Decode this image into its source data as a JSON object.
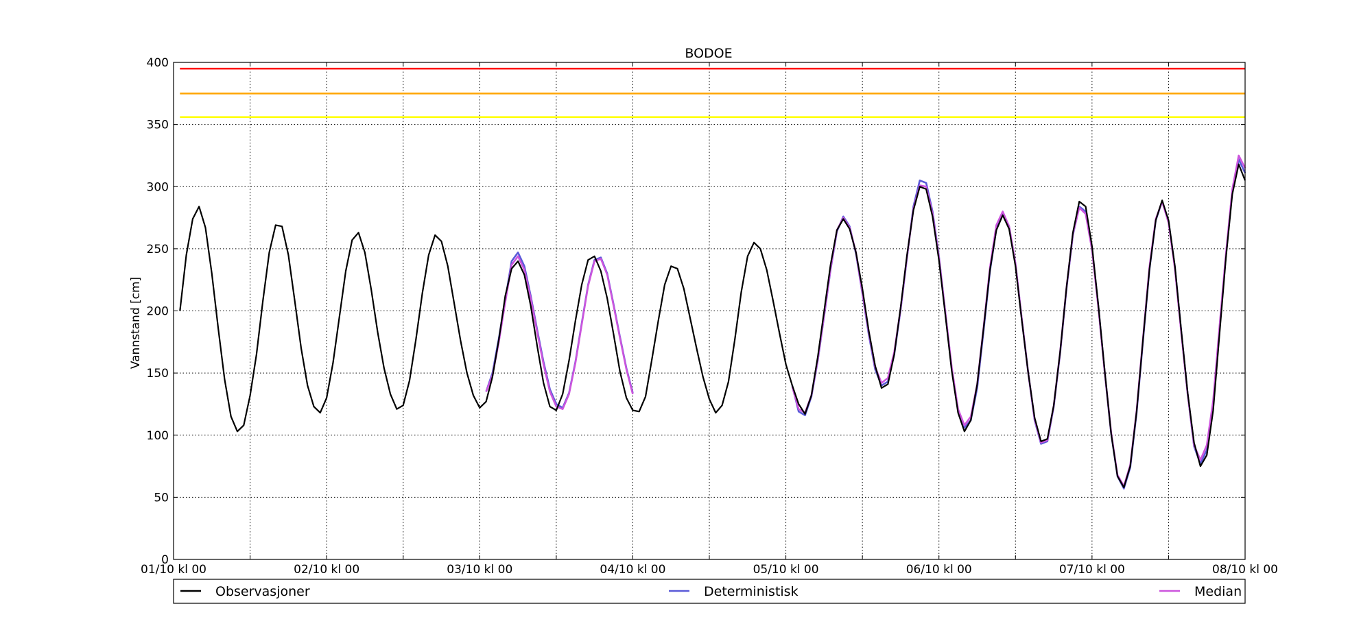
{
  "chart_data": {
    "type": "line",
    "title": "BODOE",
    "xlabel": "",
    "ylabel": "Vannstand [cm]",
    "ylim": [
      0,
      400
    ],
    "xlim_hours": [
      0,
      168
    ],
    "yticks": [
      0,
      50,
      100,
      150,
      200,
      250,
      300,
      350,
      400
    ],
    "xtick_labels": [
      "01/10 kl 00",
      "02/10 kl 00",
      "03/10 kl 00",
      "04/10 kl 00",
      "05/10 kl 00",
      "06/10 kl 00",
      "07/10 kl 00",
      "08/10 kl 00"
    ],
    "grid": true,
    "legend_position": "bottom",
    "thresholds": [
      {
        "value": 395,
        "color": "#ff0000"
      },
      {
        "value": 375,
        "color": "#ffa500"
      },
      {
        "value": 356,
        "color": "#ffff00"
      }
    ],
    "series": [
      {
        "name": "Observasjoner",
        "color": "#000000",
        "x_start_hour": 1,
        "x_step_hours": 1,
        "values": [
          200,
          245,
          274,
          284,
          267,
          230,
          186,
          145,
          115,
          103,
          108,
          132,
          165,
          208,
          247,
          269,
          268,
          245,
          208,
          170,
          140,
          123,
          118,
          130,
          158,
          195,
          232,
          257,
          263,
          247,
          217,
          183,
          154,
          133,
          121,
          124,
          144,
          177,
          214,
          245,
          261,
          256,
          236,
          206,
          176,
          150,
          132,
          122,
          127,
          147,
          177,
          212,
          234,
          240,
          229,
          204,
          172,
          142,
          123,
          120,
          133,
          160,
          192,
          221,
          241,
          244,
          232,
          210,
          181,
          151,
          130,
          120,
          119,
          131,
          161,
          192,
          221,
          236,
          234,
          218,
          194,
          170,
          147,
          129,
          118,
          124,
          143,
          177,
          215,
          244,
          255,
          250,
          233,
          208,
          182,
          157,
          140,
          125,
          117,
          132,
          163,
          200,
          237,
          265,
          274,
          266,
          247,
          218,
          184,
          156,
          138,
          141,
          165,
          203,
          245,
          281,
          300,
          298,
          276,
          241,
          197,
          152,
          118,
          103,
          112,
          141,
          186,
          233,
          265,
          277,
          266,
          236,
          192,
          150,
          114,
          95,
          97,
          124,
          167,
          219,
          263,
          288,
          284,
          252,
          204,
          151,
          101,
          67,
          58,
          75,
          119,
          177,
          233,
          273,
          289,
          273,
          236,
          184,
          134,
          94,
          75,
          84,
          120,
          182,
          243,
          294,
          318,
          305
        ]
      },
      {
        "name": "Deterministisk",
        "color": "#5a5ad8",
        "segments": [
          {
            "x_start_hour": 49,
            "x_step_hours": 1,
            "values": [
              135,
              150,
              178,
              209,
              240,
              247,
              236,
              212,
              185,
              159,
              137,
              125,
              122,
              134,
              159,
              190,
              221,
              241,
              243,
              230,
              205,
              179,
              154,
              134
            ]
          },
          {
            "x_start_hour": 97,
            "x_step_hours": 1,
            "values": [
              140,
              119,
              116,
              131,
              160,
              196,
              233,
              264,
              276,
              268,
              246,
              214,
              181,
              153,
              140,
              143,
              165,
              201,
              243,
              284,
              305,
              303,
              280,
              244,
              199,
              154,
              120,
              106,
              112,
              138,
              184,
              232,
              266,
              279,
              268,
              238,
              193,
              150,
              112,
              93,
              95,
              123,
              166,
              218,
              261,
              284,
              280,
              250,
              203,
              150,
              101,
              67,
              57,
              74,
              118,
              176,
              233,
              273,
              288,
              272,
              235,
              183,
              133,
              91,
              77,
              88,
              125,
              186,
              245,
              297,
              322,
              311
            ]
          }
        ]
      },
      {
        "name": "Median",
        "color": "#cc55dd",
        "segments": [
          {
            "x_start_hour": 49,
            "x_step_hours": 1,
            "values": [
              135,
              148,
              175,
              207,
              237,
              244,
              233,
              210,
              183,
              157,
              135,
              123,
              121,
              133,
              158,
              189,
              220,
              240,
              242,
              229,
              204,
              178,
              153,
              133
            ]
          },
          {
            "x_start_hour": 97,
            "x_step_hours": 1,
            "values": [
              139,
              121,
              118,
              132,
              161,
              197,
              234,
              265,
              275,
              267,
              247,
              215,
              183,
              155,
              142,
              146,
              167,
              202,
              244,
              282,
              301,
              300,
              278,
              243,
              199,
              155,
              121,
              108,
              115,
              141,
              187,
              235,
              269,
              280,
              268,
              238,
              193,
              150,
              113,
              94,
              96,
              124,
              167,
              219,
              262,
              283,
              278,
              249,
              202,
              150,
              102,
              68,
              59,
              76,
              120,
              178,
              235,
              274,
              288,
              271,
              234,
              182,
              133,
              92,
              80,
              92,
              128,
              188,
              246,
              298,
              325,
              315
            ]
          }
        ]
      }
    ]
  }
}
